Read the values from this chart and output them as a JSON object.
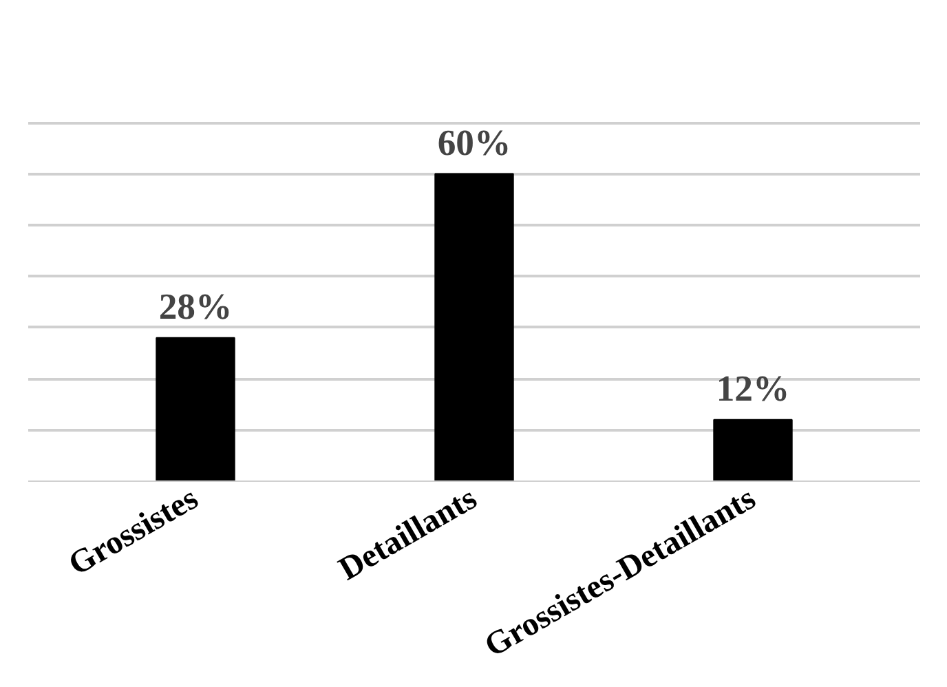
{
  "chart_data": {
    "type": "bar",
    "categories": [
      "Grossistes",
      "Detaillants",
      "Grossistes-Detaillants"
    ],
    "values": [
      28,
      60,
      12
    ],
    "color": "#000000",
    "value_labels": [
      "28%",
      "60%",
      "12%"
    ],
    "tick_labels": "x",
    "grid": "y"
  }
}
